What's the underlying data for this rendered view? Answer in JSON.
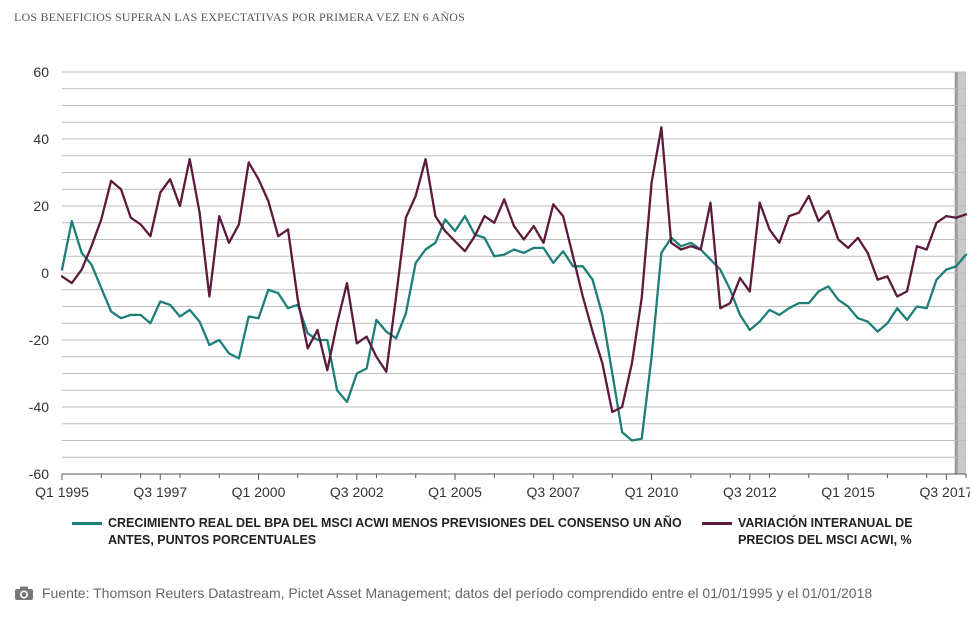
{
  "title": "LOS BENEFICIOS SUPERAN LAS EXPECTATIVAS POR PRIMERA VEZ EN 6 AÑOS",
  "source": "Fuente: Thomson Reuters Datastream, Pictet Asset Management; datos del período comprendido entre el 01/01/1995 y el 01/01/2018",
  "legend": [
    {
      "label": "CRECIMIENTO REAL DEL BPA DEL MSCI ACWI MENOS PREVISIONES DEL CONSENSO UN AÑO ANTES, PUNTOS PORCENTUALES",
      "color": "#1e7f78"
    },
    {
      "label": "VARIACIÓN INTERANUAL DE PRECIOS DEL MSCI ACWI, %",
      "color": "#5c1a3c"
    }
  ],
  "chart_data": {
    "type": "line",
    "x_start": 1995.0,
    "x_step": 0.25,
    "xlim": [
      1995.0,
      2018.0
    ],
    "ylim": [
      -60,
      60
    ],
    "yticks": [
      60,
      40,
      20,
      0,
      -20,
      -40,
      -60
    ],
    "ytick_labels": [
      "60",
      "40",
      "20",
      "0",
      "-20",
      "-40",
      "-60"
    ],
    "xticks": [
      1995.0,
      1997.5,
      2000.0,
      2002.5,
      2005.0,
      2007.5,
      2010.0,
      2012.5,
      2015.0,
      2017.5
    ],
    "xtick_labels": [
      "Q1 1995",
      "Q3 1997",
      "Q1 2000",
      "Q3 2002",
      "Q1 2005",
      "Q3 2007",
      "Q1 2010",
      "Q3 2012",
      "Q1 2015",
      "Q3 2017"
    ],
    "shaded_region": [
      2017.75,
      2018.0
    ],
    "grid": "horizontal",
    "series": [
      {
        "name": "CRECIMIENTO REAL DEL BPA DEL MSCI ACWI MENOS PREVISIONES DEL CONSENSO UN AÑO ANTES, PUNTOS PORCENTUALES",
        "color": "#1e7f78",
        "values": [
          1,
          15.5,
          6,
          2.5,
          -4.5,
          -11.5,
          -13.5,
          -12.5,
          -12.5,
          -15,
          -8.5,
          -9.5,
          -13,
          -11,
          -14.5,
          -21.5,
          -20,
          -24,
          -25.5,
          -13,
          -13.5,
          -5,
          -6,
          -10.5,
          -9.5,
          -18,
          -20,
          -20,
          -35,
          -38.5,
          -30,
          -28.5,
          -14,
          -17.5,
          -19.5,
          -12,
          3,
          7,
          9,
          16,
          12.5,
          17,
          11.5,
          10.5,
          5,
          5.5,
          7,
          6,
          7.5,
          7.5,
          3,
          6.5,
          2,
          2,
          -2,
          -12.5,
          -30,
          -47.5,
          -50,
          -49.5,
          -25,
          6,
          10.5,
          8,
          9,
          7,
          4,
          1,
          -5,
          -12.5,
          -17,
          -14.5,
          -11,
          -12.5,
          -10.5,
          -9,
          -9,
          -5.5,
          -4,
          -8,
          -10,
          -13.5,
          -14.5,
          -17.5,
          -15,
          -10.5,
          -14,
          -10,
          -10.5,
          -2,
          1,
          2,
          5.5
        ]
      },
      {
        "name": "VARIACIÓN INTERANUAL DE PRECIOS DEL MSCI ACWI, %",
        "color": "#5c1a3c",
        "values": [
          -1,
          -3,
          1,
          8,
          16,
          27.5,
          25,
          16.5,
          14.5,
          11,
          24,
          28,
          20,
          34,
          18,
          -7,
          17,
          9,
          14.5,
          33,
          28,
          21.5,
          11,
          13,
          -8,
          -22.5,
          -17,
          -29,
          -15,
          -3,
          -21,
          -19,
          -25,
          -29.5,
          -7,
          16.5,
          23,
          34,
          17,
          12.5,
          9.5,
          6.5,
          11,
          17,
          15,
          22,
          14,
          10,
          14,
          9,
          20.5,
          17,
          5,
          -7,
          -17.5,
          -27,
          -41.5,
          -40,
          -27,
          -7.5,
          27,
          43.5,
          9,
          7,
          8,
          7,
          21,
          -10.5,
          -9,
          -1.5,
          -5.5,
          21,
          13,
          9,
          17,
          18,
          23,
          15.5,
          18.5,
          10,
          7.5,
          10.5,
          6,
          -2,
          -1,
          -7,
          -5.5,
          8,
          7,
          15,
          17,
          16.5,
          17.5
        ]
      }
    ]
  }
}
